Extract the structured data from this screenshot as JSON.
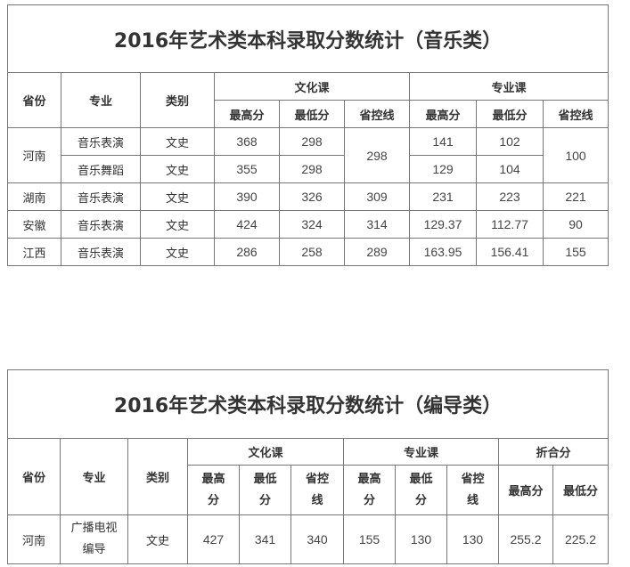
{
  "music": {
    "title": "2016年艺术类本科录取分数统计（音乐类）",
    "headers": {
      "province": "省份",
      "major": "专业",
      "category": "类别",
      "culture": "文化课",
      "profession": "专业课",
      "max": "最高分",
      "min": "最低分",
      "line": "省控线"
    },
    "rows": [
      {
        "province": "河南",
        "major": "音乐表演",
        "category": "文史",
        "c_max": "368",
        "c_min": "298",
        "c_line": "298",
        "p_max": "141",
        "p_min": "102",
        "p_line": "100"
      },
      {
        "major": "音乐舞蹈",
        "category": "文史",
        "c_max": "355",
        "c_min": "298",
        "p_max": "129",
        "p_min": "104"
      },
      {
        "province": "湖南",
        "major": "音乐表演",
        "category": "文史",
        "c_max": "390",
        "c_min": "326",
        "c_line": "309",
        "p_max": "231",
        "p_min": "223",
        "p_line": "221"
      },
      {
        "province": "安徽",
        "major": "音乐表演",
        "category": "文史",
        "c_max": "424",
        "c_min": "324",
        "c_line": "314",
        "p_max": "129.37",
        "p_min": "112.77",
        "p_line": "90"
      },
      {
        "province": "江西",
        "major": "音乐表演",
        "category": "文史",
        "c_max": "286",
        "c_min": "258",
        "c_line": "289",
        "p_max": "163.95",
        "p_min": "156.41",
        "p_line": "155"
      }
    ]
  },
  "directing": {
    "title": "2016年艺术类本科录取分数统计（编导类）",
    "headers": {
      "province": "省份",
      "major": "专业",
      "category": "类别",
      "culture": "文化课",
      "profession": "专业课",
      "combined": "折合分",
      "max_a": "最高",
      "max_b": "分",
      "min_a": "最低",
      "min_b": "分",
      "line_a": "省控",
      "line_b": "线",
      "max": "最高分",
      "min": "最低分"
    },
    "rows": [
      {
        "province": "河南",
        "major_a": "广播电视",
        "major_b": "编导",
        "category": "文史",
        "c_max": "427",
        "c_min": "341",
        "c_line": "340",
        "p_max": "155",
        "p_min": "130",
        "p_line": "130",
        "t_max": "255.2",
        "t_min": "225.2"
      }
    ]
  }
}
